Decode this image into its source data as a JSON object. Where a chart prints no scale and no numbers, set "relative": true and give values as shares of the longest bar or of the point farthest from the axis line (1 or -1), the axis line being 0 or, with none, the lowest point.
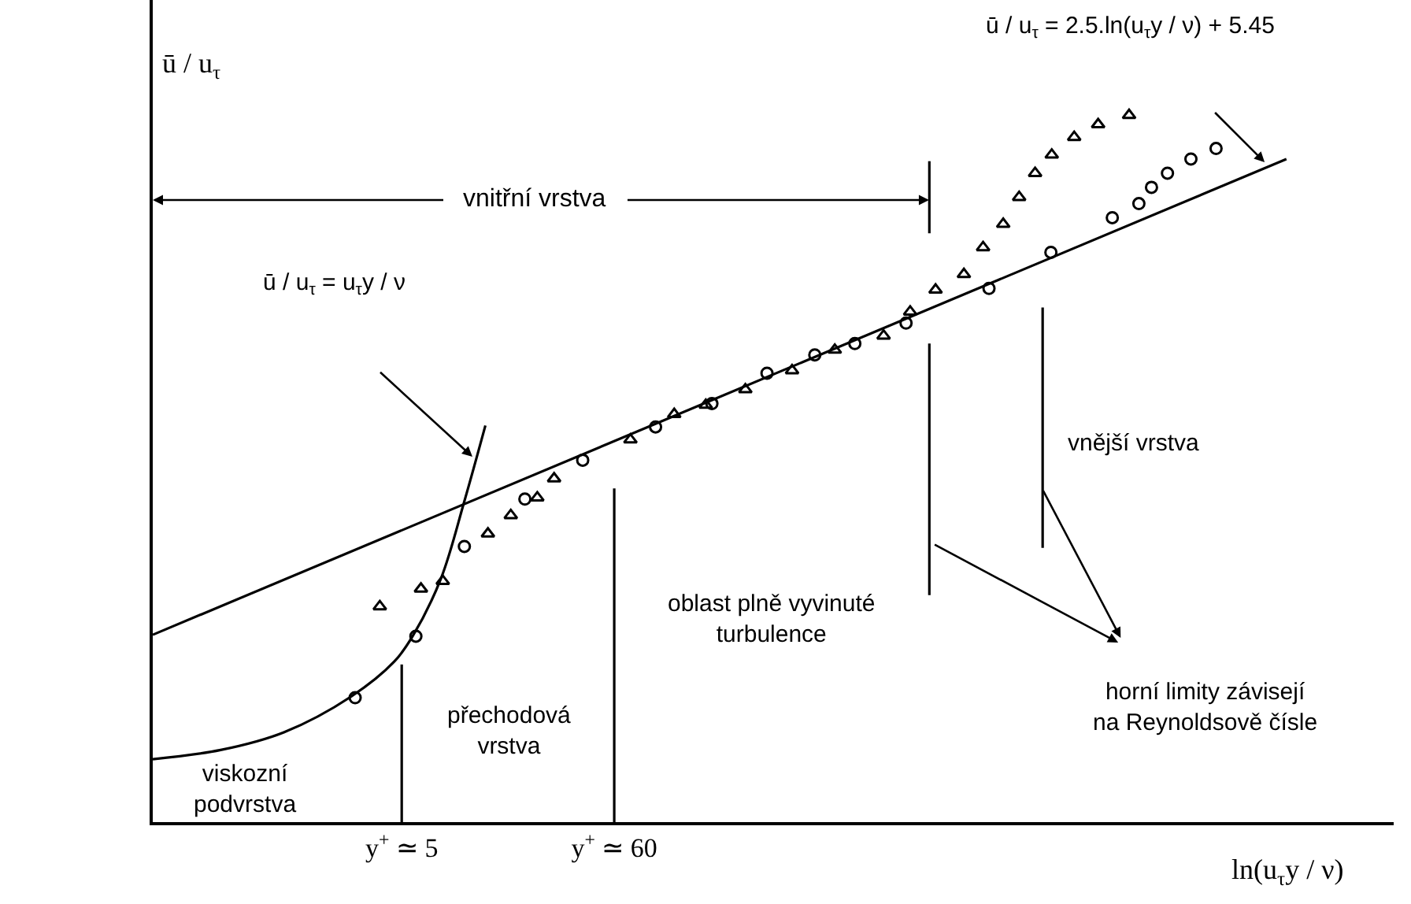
{
  "chart_data": {
    "type": "line",
    "relative": true,
    "log": "x",
    "xlabel": "ln(u$_{τ}$y / ν)",
    "ylabel": "ū / u$_{τ}$",
    "xlim": [
      0.272,
      545000
    ],
    "xticks": [
      {
        "value": 5,
        "label": "y$^{+}$ ≃ 5"
      },
      {
        "value": 60,
        "label": "y$^{+}$ ≃ 60"
      }
    ],
    "tick_labels": "x",
    "series": [
      {
        "type": "scatter",
        "marker": "circle",
        "color": "#000000",
        "x": [
          2.9,
          5.9,
          10.4,
          21.1,
          41.5,
          97.3,
          188,
          358,
          626,
          1000,
          1820,
          4800,
          9900,
          20300,
          27700,
          32100,
          38700,
          50900,
          68300
        ],
        "values": [
          0.176,
          0.263,
          0.39,
          0.457,
          0.512,
          0.559,
          0.592,
          0.635,
          0.661,
          0.677,
          0.706,
          0.755,
          0.806,
          0.855,
          0.875,
          0.898,
          0.918,
          0.938,
          0.953
        ]
      },
      {
        "type": "scatter",
        "marker": "triangle",
        "color": "#000000",
        "x": [
          3.87,
          6.26,
          8.08,
          13.7,
          17.9,
          24.4,
          29.7,
          72.5,
          121,
          175,
          278,
          480,
          791,
          1400,
          1910,
          2570,
          3580,
          4480,
          5670,
          6830,
          8230,
          10000,
          13000,
          17200,
          24700
        ],
        "values": [
          0.305,
          0.33,
          0.341,
          0.408,
          0.434,
          0.459,
          0.486,
          0.541,
          0.577,
          0.59,
          0.612,
          0.639,
          0.668,
          0.688,
          0.722,
          0.753,
          0.775,
          0.813,
          0.846,
          0.884,
          0.918,
          0.944,
          0.969,
          0.987,
          1.0
        ]
      },
      {
        "color": "#000000",
        "x": [
          0.272,
          155500
        ],
        "values": [
          0.265,
          0.938
        ]
      },
      {
        "color": "#000000",
        "x": [
          0.272,
          0.602,
          1.26,
          2.78,
          4.58,
          5.68,
          7.92,
          10.4,
          13.3
        ],
        "values": [
          0.089,
          0.102,
          0.127,
          0.178,
          0.227,
          0.263,
          0.345,
          0.454,
          0.561
        ]
      },
      {
        "color": "#000000",
        "x": [
          5,
          5
        ],
        "values": [
          0,
          0.223
        ]
      },
      {
        "color": "#000000",
        "x": [
          60,
          60
        ],
        "values": [
          0,
          0.472
        ]
      },
      {
        "color": "#000000",
        "x": [
          2390,
          2390
        ],
        "values": [
          0.321,
          0.677
        ]
      },
      {
        "color": "#000000",
        "x": [
          2390,
          2390
        ],
        "values": [
          0.833,
          0.935
        ]
      },
      {
        "color": "#000000",
        "x": [
          8990,
          8990
        ],
        "values": [
          0.388,
          0.728
        ]
      }
    ],
    "annotations": [
      "ū / u$_{τ}$ = 2.5.ln(u$_{τ}$y / ν) + 5.45",
      "vnitřní vrstva",
      "ū / u$_{τ}$ = u$_{τ}$y / ν",
      "vnější vrstva",
      "oblast plně vyvinuté\nturbulence",
      "horní limity závisejí\nna Reynoldsově čísle",
      "přechodová\nvrstva",
      "viskozní\npodvrstva"
    ]
  }
}
